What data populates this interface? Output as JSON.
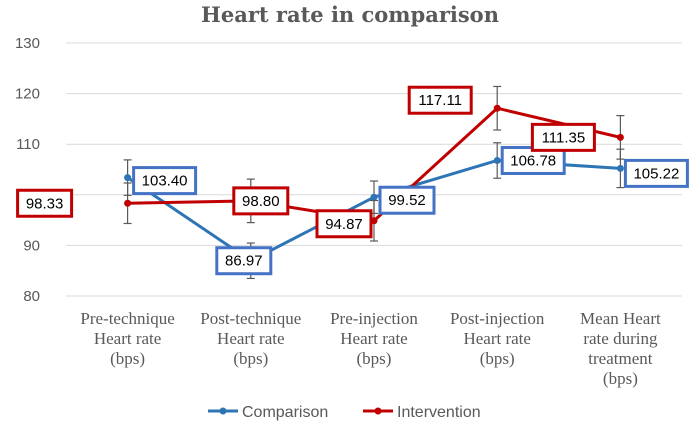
{
  "chart_data": {
    "type": "line",
    "title": "Heart rate in comparison",
    "xlabel": "",
    "ylabel": "",
    "ylim": [
      80,
      130
    ],
    "yticks": [
      80,
      90,
      100,
      110,
      120,
      130
    ],
    "grid": true,
    "legend_position": "bottom",
    "categories": [
      [
        "Pre-technique",
        "Heart rate",
        "(bps)"
      ],
      [
        "Post-technique",
        "Heart rate",
        "(bps)"
      ],
      [
        "Pre-injection",
        "Heart rate",
        "(bps)"
      ],
      [
        "Post-injection",
        "Heart rate",
        "(bps)"
      ],
      [
        "Mean Heart",
        "rate during",
        "treatment",
        "(bps)"
      ]
    ],
    "series": [
      {
        "name": "Comparison",
        "color": "#2e75b6",
        "label_box_color": "#4472c4",
        "values": [
          103.4,
          86.97,
          99.52,
          106.78,
          105.22
        ],
        "labels": [
          "103.40",
          "86.97",
          "99.52",
          "106.78",
          "105.22"
        ],
        "errors": [
          3.5,
          3.5,
          3.2,
          3.5,
          3.8
        ]
      },
      {
        "name": "Intervention",
        "color": "#c00000",
        "label_box_color": "#c00000",
        "values": [
          98.33,
          98.8,
          94.87,
          117.11,
          111.35
        ],
        "labels": [
          "98.33",
          "98.80",
          "94.87",
          "117.11",
          "111.35"
        ],
        "errors": [
          4.0,
          4.3,
          4.0,
          4.3,
          4.3
        ]
      }
    ]
  }
}
